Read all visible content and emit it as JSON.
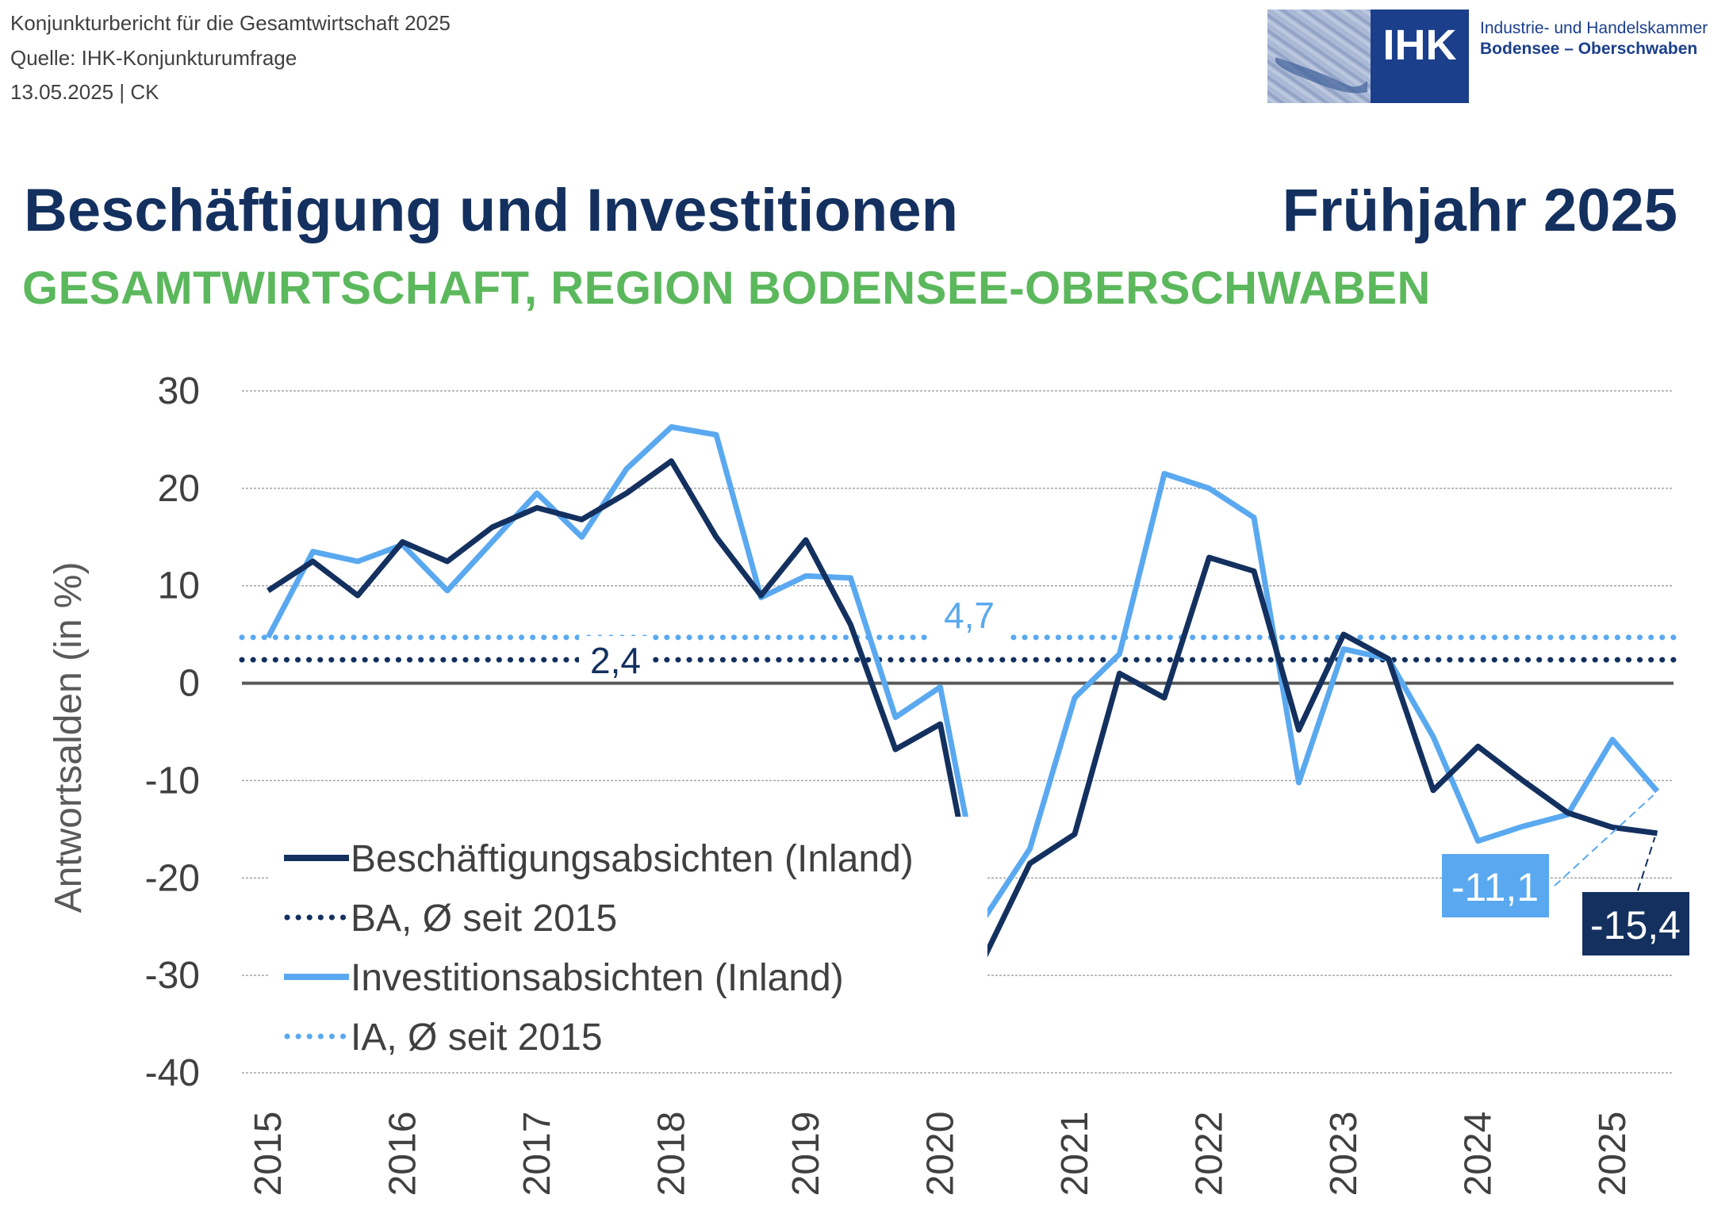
{
  "header": {
    "meta_lines": [
      "Konjunkturbericht für die Gesamtwirtschaft 2025",
      "Quelle: IHK-Konjunkturumfrage",
      "13.05.2025 | CK"
    ],
    "logo": {
      "abbr": "IHK",
      "line1": "Industrie- und Handelskammer",
      "line2": "Bodensee – Oberschwaben"
    },
    "title": "Beschäftigung und Investitionen",
    "season": "Frühjahr 2025",
    "subtitle": "GESAMTWIRTSCHAFT, REGION BODENSEE-OBERSCHWABEN"
  },
  "colors": {
    "dark_navy": "#13305f",
    "light_blue": "#5aa9f0",
    "green": "#5cb85c",
    "grid": "#a6a6a6",
    "zero_line": "#595959"
  },
  "chart_data": {
    "type": "line",
    "title": "Beschäftigung und Investitionen",
    "xlabel": "",
    "ylabel": "Antwortsalden (in %)",
    "ylim": [
      -40,
      30
    ],
    "yticks": [
      30,
      20,
      10,
      0,
      -10,
      -20,
      -30,
      -40
    ],
    "ytick_labels": [
      "30",
      "20",
      "10",
      "0",
      "-10",
      "-20",
      "-30",
      "-40"
    ],
    "xticks": [
      "2015",
      "2016",
      "2017",
      "2018",
      "2019",
      "2020",
      "2021",
      "2022",
      "2023",
      "2024",
      "2025"
    ],
    "grid": true,
    "legend_position": "bottom-left",
    "series": [
      {
        "name": "Beschäftigungsabsichten (Inland)",
        "style": "solid",
        "color": "#13305f",
        "values": [
          9.5,
          12.5,
          9,
          14.5,
          12.5,
          16,
          18,
          16.8,
          19.5,
          22.8,
          15,
          9,
          14.7,
          6,
          -6.8,
          -4.2,
          -28,
          -18.5,
          -15.5,
          1,
          -1.5,
          12.9,
          11.5,
          -4.8,
          5,
          2.5,
          -11,
          -6.5,
          -10,
          -13.3,
          -14.8,
          -15.4
        ]
      },
      {
        "name": "Investitionsabsichten (Inland)",
        "style": "solid",
        "color": "#5aa9f0",
        "values": [
          4.7,
          13.5,
          12.5,
          14.2,
          9.5,
          14.5,
          19.5,
          15,
          22,
          26.3,
          25.5,
          8.8,
          11,
          10.8,
          -3.5,
          -0.4,
          -24,
          -17,
          -1.5,
          3,
          21.5,
          20,
          17,
          -10.2,
          3.5,
          2.5,
          -5.5,
          -16.2,
          -14.7,
          -13.5,
          -5.8,
          -11.1
        ]
      },
      {
        "name": "BA, Ø seit 2015",
        "style": "dotted",
        "color": "#13305f",
        "value": 2.4
      },
      {
        "name": "IA, Ø seit 2015",
        "style": "dotted",
        "color": "#5aa9f0",
        "value": 4.7
      }
    ],
    "annotations": {
      "ba_avg_label": "2,4",
      "ia_avg_label": "4,7",
      "last_ia_label": "-11,1",
      "last_ba_label": "-15,4"
    }
  }
}
